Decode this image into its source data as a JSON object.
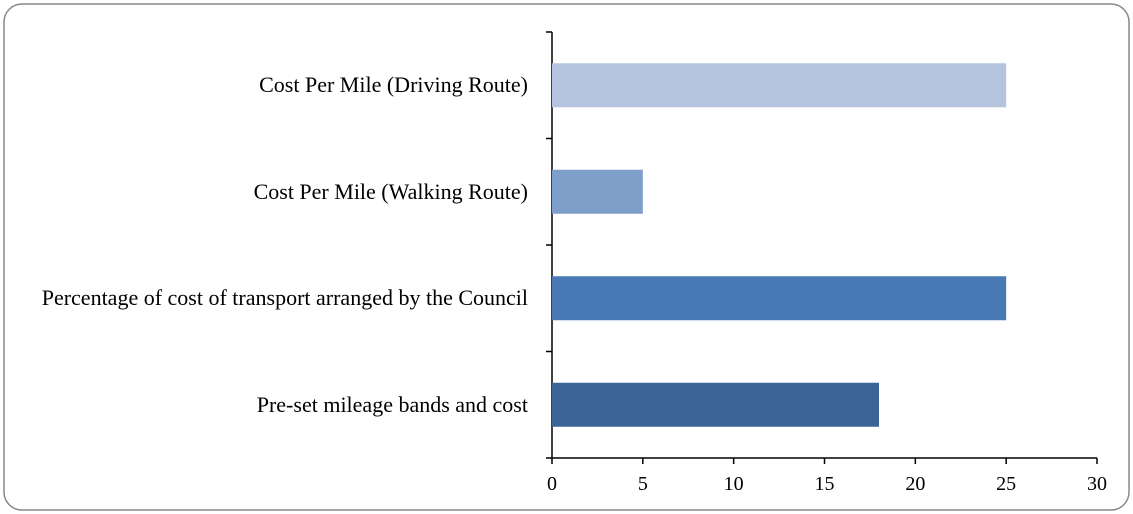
{
  "chart_data": {
    "type": "bar",
    "orientation": "horizontal",
    "categories": [
      "Cost Per Mile (Driving Route)",
      "Cost Per Mile (Walking Route)",
      "Percentage of cost of transport arranged by the Council",
      "Pre-set mileage bands and cost"
    ],
    "values": [
      25,
      5,
      25,
      18
    ],
    "colors": [
      "#b4c3de",
      "#7f9fcb",
      "#4a7ab5",
      "#3b6597"
    ],
    "xlim": [
      0,
      30
    ],
    "xticks": [
      0,
      5,
      10,
      15,
      20,
      25,
      30
    ],
    "grid": false
  }
}
